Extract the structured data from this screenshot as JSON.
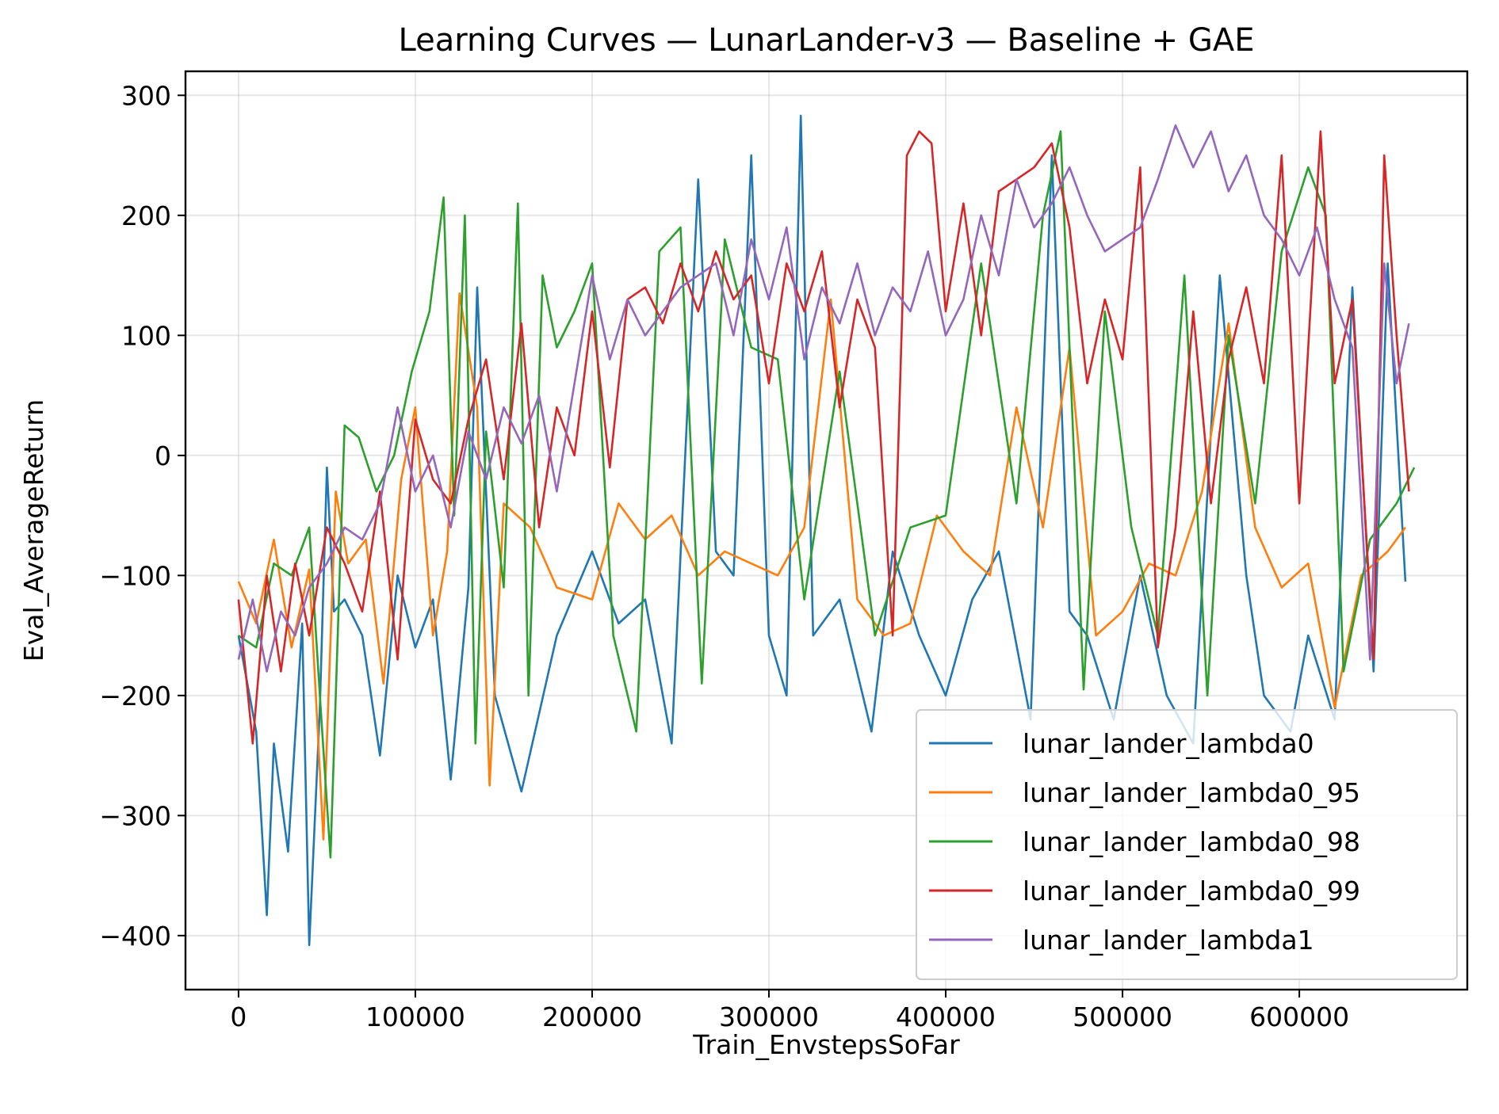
{
  "chart_data": {
    "type": "line",
    "title": "Learning Curves — LunarLander-v3 — Baseline + GAE",
    "xlabel": "Train_EnvstepsSoFar",
    "ylabel": "Eval_AverageReturn",
    "xlim": [
      -30000,
      695000
    ],
    "ylim": [
      -445,
      320
    ],
    "xticks": [
      0,
      100000,
      200000,
      300000,
      400000,
      500000,
      600000
    ],
    "xtick_labels": [
      "0",
      "100000",
      "200000",
      "300000",
      "400000",
      "500000",
      "600000"
    ],
    "yticks": [
      -400,
      -300,
      -200,
      -100,
      0,
      100,
      200,
      300
    ],
    "ytick_labels": [
      "−400",
      "−300",
      "−200",
      "−100",
      "0",
      "100",
      "200",
      "300"
    ],
    "grid": true,
    "legend_position": "lower-right",
    "series": [
      {
        "name": "lunar_lander_lambda0",
        "color": "#1f77b4",
        "x": [
          0,
          10000,
          16000,
          20000,
          28000,
          36000,
          40000,
          46000,
          50000,
          54000,
          60000,
          70000,
          80000,
          90000,
          100000,
          110000,
          120000,
          130000,
          135000,
          145000,
          160000,
          180000,
          200000,
          215000,
          230000,
          245000,
          260000,
          270000,
          280000,
          290000,
          300000,
          310000,
          318000,
          325000,
          340000,
          358000,
          370000,
          385000,
          400000,
          415000,
          430000,
          448000,
          460000,
          470000,
          480000,
          495000,
          510000,
          525000,
          540000,
          555000,
          570000,
          580000,
          595000,
          605000,
          620000,
          630000,
          642000,
          650000,
          660000
        ],
        "y": [
          -150,
          -230,
          -383,
          -240,
          -330,
          -140,
          -408,
          -210,
          -10,
          -130,
          -120,
          -150,
          -250,
          -100,
          -160,
          -120,
          -270,
          -110,
          140,
          -200,
          -280,
          -150,
          -80,
          -140,
          -120,
          -240,
          230,
          -80,
          -100,
          250,
          -150,
          -200,
          283,
          -150,
          -120,
          -230,
          -80,
          -150,
          -200,
          -120,
          -80,
          -220,
          250,
          -130,
          -150,
          -220,
          -100,
          -200,
          -240,
          150,
          -100,
          -200,
          -230,
          -150,
          -220,
          140,
          -180,
          160,
          -105
        ]
      },
      {
        "name": "lunar_lander_lambda0_95",
        "color": "#ff7f0e",
        "x": [
          0,
          10000,
          20000,
          30000,
          40000,
          48000,
          55000,
          62000,
          72000,
          82000,
          92000,
          100000,
          110000,
          118000,
          125000,
          135000,
          142000,
          150000,
          165000,
          180000,
          200000,
          215000,
          230000,
          245000,
          260000,
          275000,
          290000,
          305000,
          320000,
          335000,
          350000,
          365000,
          380000,
          395000,
          410000,
          425000,
          440000,
          455000,
          470000,
          485000,
          500000,
          515000,
          530000,
          545000,
          560000,
          575000,
          590000,
          605000,
          620000,
          635000,
          650000,
          660000
        ],
        "y": [
          -105,
          -140,
          -70,
          -160,
          -95,
          -320,
          -30,
          -90,
          -70,
          -190,
          -20,
          40,
          -150,
          -80,
          135,
          40,
          -275,
          -40,
          -60,
          -110,
          -120,
          -40,
          -70,
          -50,
          -100,
          -80,
          -90,
          -100,
          -60,
          130,
          -120,
          -150,
          -140,
          -50,
          -80,
          -100,
          40,
          -60,
          90,
          -150,
          -130,
          -90,
          -100,
          -30,
          110,
          -60,
          -110,
          -90,
          -210,
          -100,
          -80,
          -60
        ]
      },
      {
        "name": "lunar_lander_lambda0_98",
        "color": "#2ca02c",
        "x": [
          0,
          10000,
          20000,
          30000,
          40000,
          46000,
          52000,
          60000,
          68000,
          78000,
          88000,
          98000,
          108000,
          116000,
          122000,
          128000,
          134000,
          140000,
          150000,
          158000,
          164000,
          172000,
          180000,
          190000,
          200000,
          212000,
          225000,
          238000,
          250000,
          262000,
          275000,
          290000,
          305000,
          320000,
          340000,
          360000,
          380000,
          400000,
          420000,
          440000,
          455000,
          465000,
          478000,
          490000,
          505000,
          520000,
          535000,
          548000,
          560000,
          575000,
          590000,
          605000,
          615000,
          625000,
          640000,
          655000,
          665000
        ],
        "y": [
          -150,
          -160,
          -90,
          -100,
          -60,
          -200,
          -335,
          25,
          15,
          -30,
          0,
          70,
          120,
          215,
          -50,
          200,
          -240,
          20,
          -110,
          210,
          -200,
          150,
          90,
          120,
          160,
          -150,
          -230,
          170,
          190,
          -190,
          180,
          90,
          80,
          -120,
          70,
          -150,
          -60,
          -50,
          160,
          -40,
          200,
          270,
          -195,
          120,
          -60,
          -150,
          150,
          -200,
          100,
          -40,
          170,
          240,
          200,
          -180,
          -70,
          -40,
          -10
        ]
      },
      {
        "name": "lunar_lander_lambda0_99",
        "color": "#d62728",
        "x": [
          0,
          8000,
          16000,
          24000,
          32000,
          40000,
          50000,
          60000,
          70000,
          80000,
          90000,
          100000,
          110000,
          120000,
          130000,
          140000,
          150000,
          160000,
          170000,
          180000,
          190000,
          200000,
          210000,
          220000,
          230000,
          240000,
          250000,
          260000,
          270000,
          280000,
          290000,
          300000,
          310000,
          320000,
          330000,
          340000,
          350000,
          360000,
          370000,
          378000,
          385000,
          392000,
          400000,
          410000,
          420000,
          430000,
          440000,
          450000,
          460000,
          470000,
          480000,
          490000,
          500000,
          510000,
          520000,
          530000,
          540000,
          550000,
          560000,
          570000,
          580000,
          590000,
          600000,
          612000,
          620000,
          630000,
          642000,
          648000,
          655000,
          662000
        ],
        "y": [
          -120,
          -240,
          -100,
          -180,
          -90,
          -150,
          -60,
          -90,
          -130,
          -30,
          -170,
          30,
          -20,
          -40,
          30,
          80,
          -20,
          110,
          -60,
          40,
          0,
          120,
          -10,
          130,
          140,
          110,
          160,
          120,
          170,
          130,
          150,
          60,
          160,
          120,
          170,
          40,
          130,
          90,
          -150,
          250,
          270,
          260,
          120,
          210,
          100,
          220,
          230,
          240,
          260,
          190,
          60,
          130,
          80,
          240,
          -160,
          -60,
          120,
          -40,
          80,
          140,
          60,
          250,
          -40,
          270,
          60,
          130,
          -170,
          250,
          100,
          -30
        ]
      },
      {
        "name": "lunar_lander_lambda1",
        "color": "#9467bd",
        "x": [
          0,
          8000,
          16000,
          24000,
          32000,
          40000,
          50000,
          60000,
          70000,
          80000,
          90000,
          100000,
          110000,
          120000,
          130000,
          140000,
          150000,
          160000,
          170000,
          180000,
          190000,
          200000,
          210000,
          220000,
          230000,
          240000,
          250000,
          260000,
          270000,
          280000,
          290000,
          300000,
          310000,
          320000,
          330000,
          340000,
          350000,
          360000,
          370000,
          380000,
          390000,
          400000,
          410000,
          420000,
          430000,
          440000,
          450000,
          460000,
          470000,
          480000,
          490000,
          500000,
          510000,
          520000,
          530000,
          540000,
          550000,
          560000,
          570000,
          580000,
          590000,
          600000,
          610000,
          620000,
          630000,
          640000,
          648000,
          655000,
          662000
        ],
        "y": [
          -170,
          -120,
          -180,
          -130,
          -150,
          -110,
          -90,
          -60,
          -70,
          -40,
          40,
          -30,
          0,
          -60,
          20,
          -20,
          40,
          10,
          50,
          -30,
          60,
          150,
          80,
          130,
          100,
          120,
          140,
          150,
          160,
          100,
          180,
          130,
          190,
          80,
          140,
          110,
          160,
          100,
          140,
          120,
          170,
          100,
          130,
          200,
          150,
          230,
          190,
          210,
          240,
          200,
          170,
          180,
          190,
          230,
          275,
          240,
          270,
          220,
          250,
          200,
          180,
          150,
          190,
          130,
          90,
          -170,
          160,
          60,
          110
        ]
      }
    ]
  }
}
